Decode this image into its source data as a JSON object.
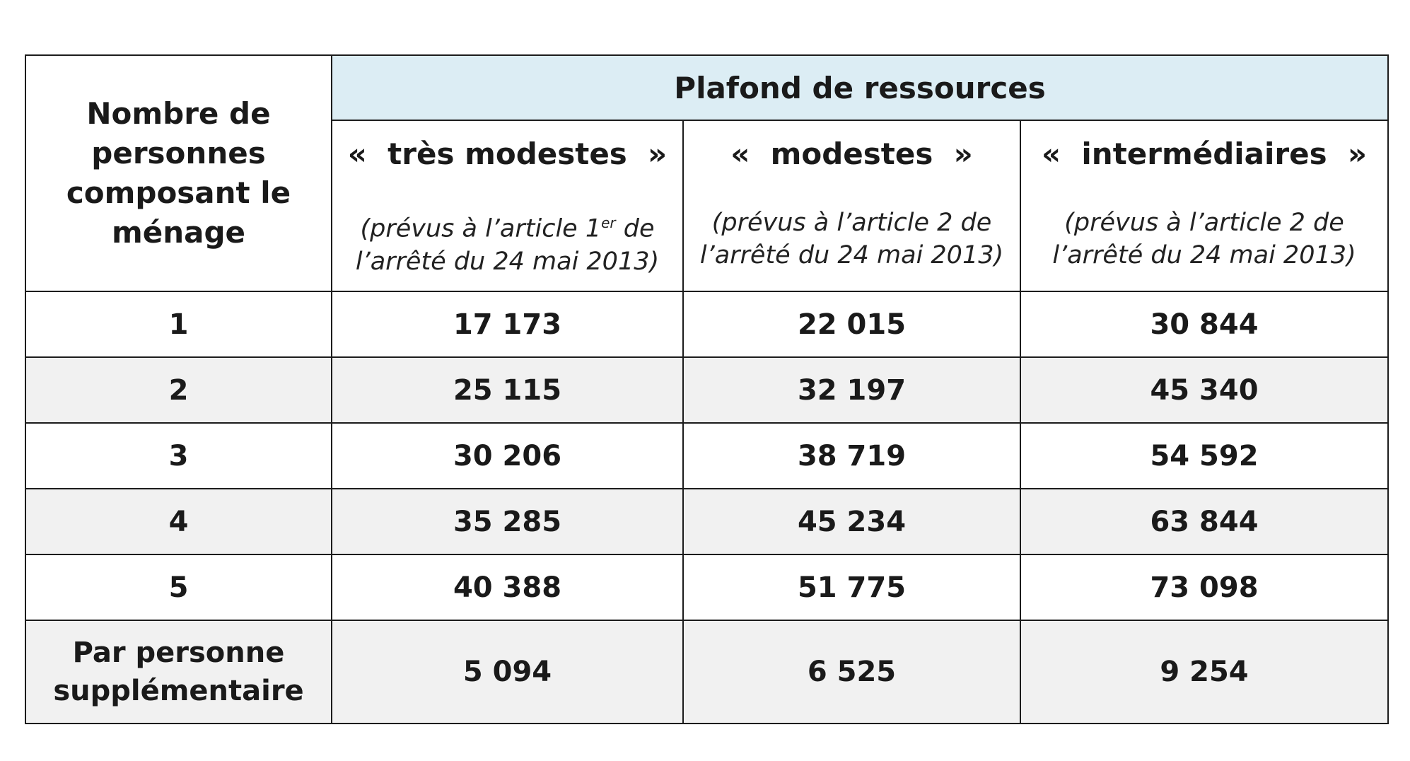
{
  "table": {
    "household_header": "Nombre de personnes composant le ménage",
    "band_header": "Plafond de ressources",
    "categories": [
      {
        "name": "«  très modestes  »",
        "note_prefix": "(prévus à l’article 1",
        "note_sup": "er",
        "note_suffix": " de l’arrêté du 24 mai 2013)"
      },
      {
        "name": "«  modestes  »",
        "note_prefix": "(prévus à l’article 2 de l’arrêté du 24 mai 2013)",
        "note_sup": "",
        "note_suffix": ""
      },
      {
        "name": "«  intermédiaires  »",
        "note_prefix": "(prévus à l’article 2 de l’arrêté du 24 mai 2013)",
        "note_sup": "",
        "note_suffix": ""
      }
    ],
    "rows": [
      {
        "label": "1",
        "values": [
          "17 173",
          "22 015",
          "30 844"
        ]
      },
      {
        "label": "2",
        "values": [
          "25 115",
          "32 197",
          "45 340"
        ]
      },
      {
        "label": "3",
        "values": [
          "30 206",
          "38 719",
          "54 592"
        ]
      },
      {
        "label": "4",
        "values": [
          "35 285",
          "45 234",
          "63 844"
        ]
      },
      {
        "label": "5",
        "values": [
          "40 388",
          "51 775",
          "73 098"
        ]
      },
      {
        "label": "Par personne supplémentaire",
        "values": [
          "5 094",
          "6 525",
          "9 254"
        ]
      }
    ],
    "colors": {
      "header_band": "#dcedf4",
      "shaded_row": "#f1f1f1",
      "border": "#1c1c1c"
    }
  }
}
